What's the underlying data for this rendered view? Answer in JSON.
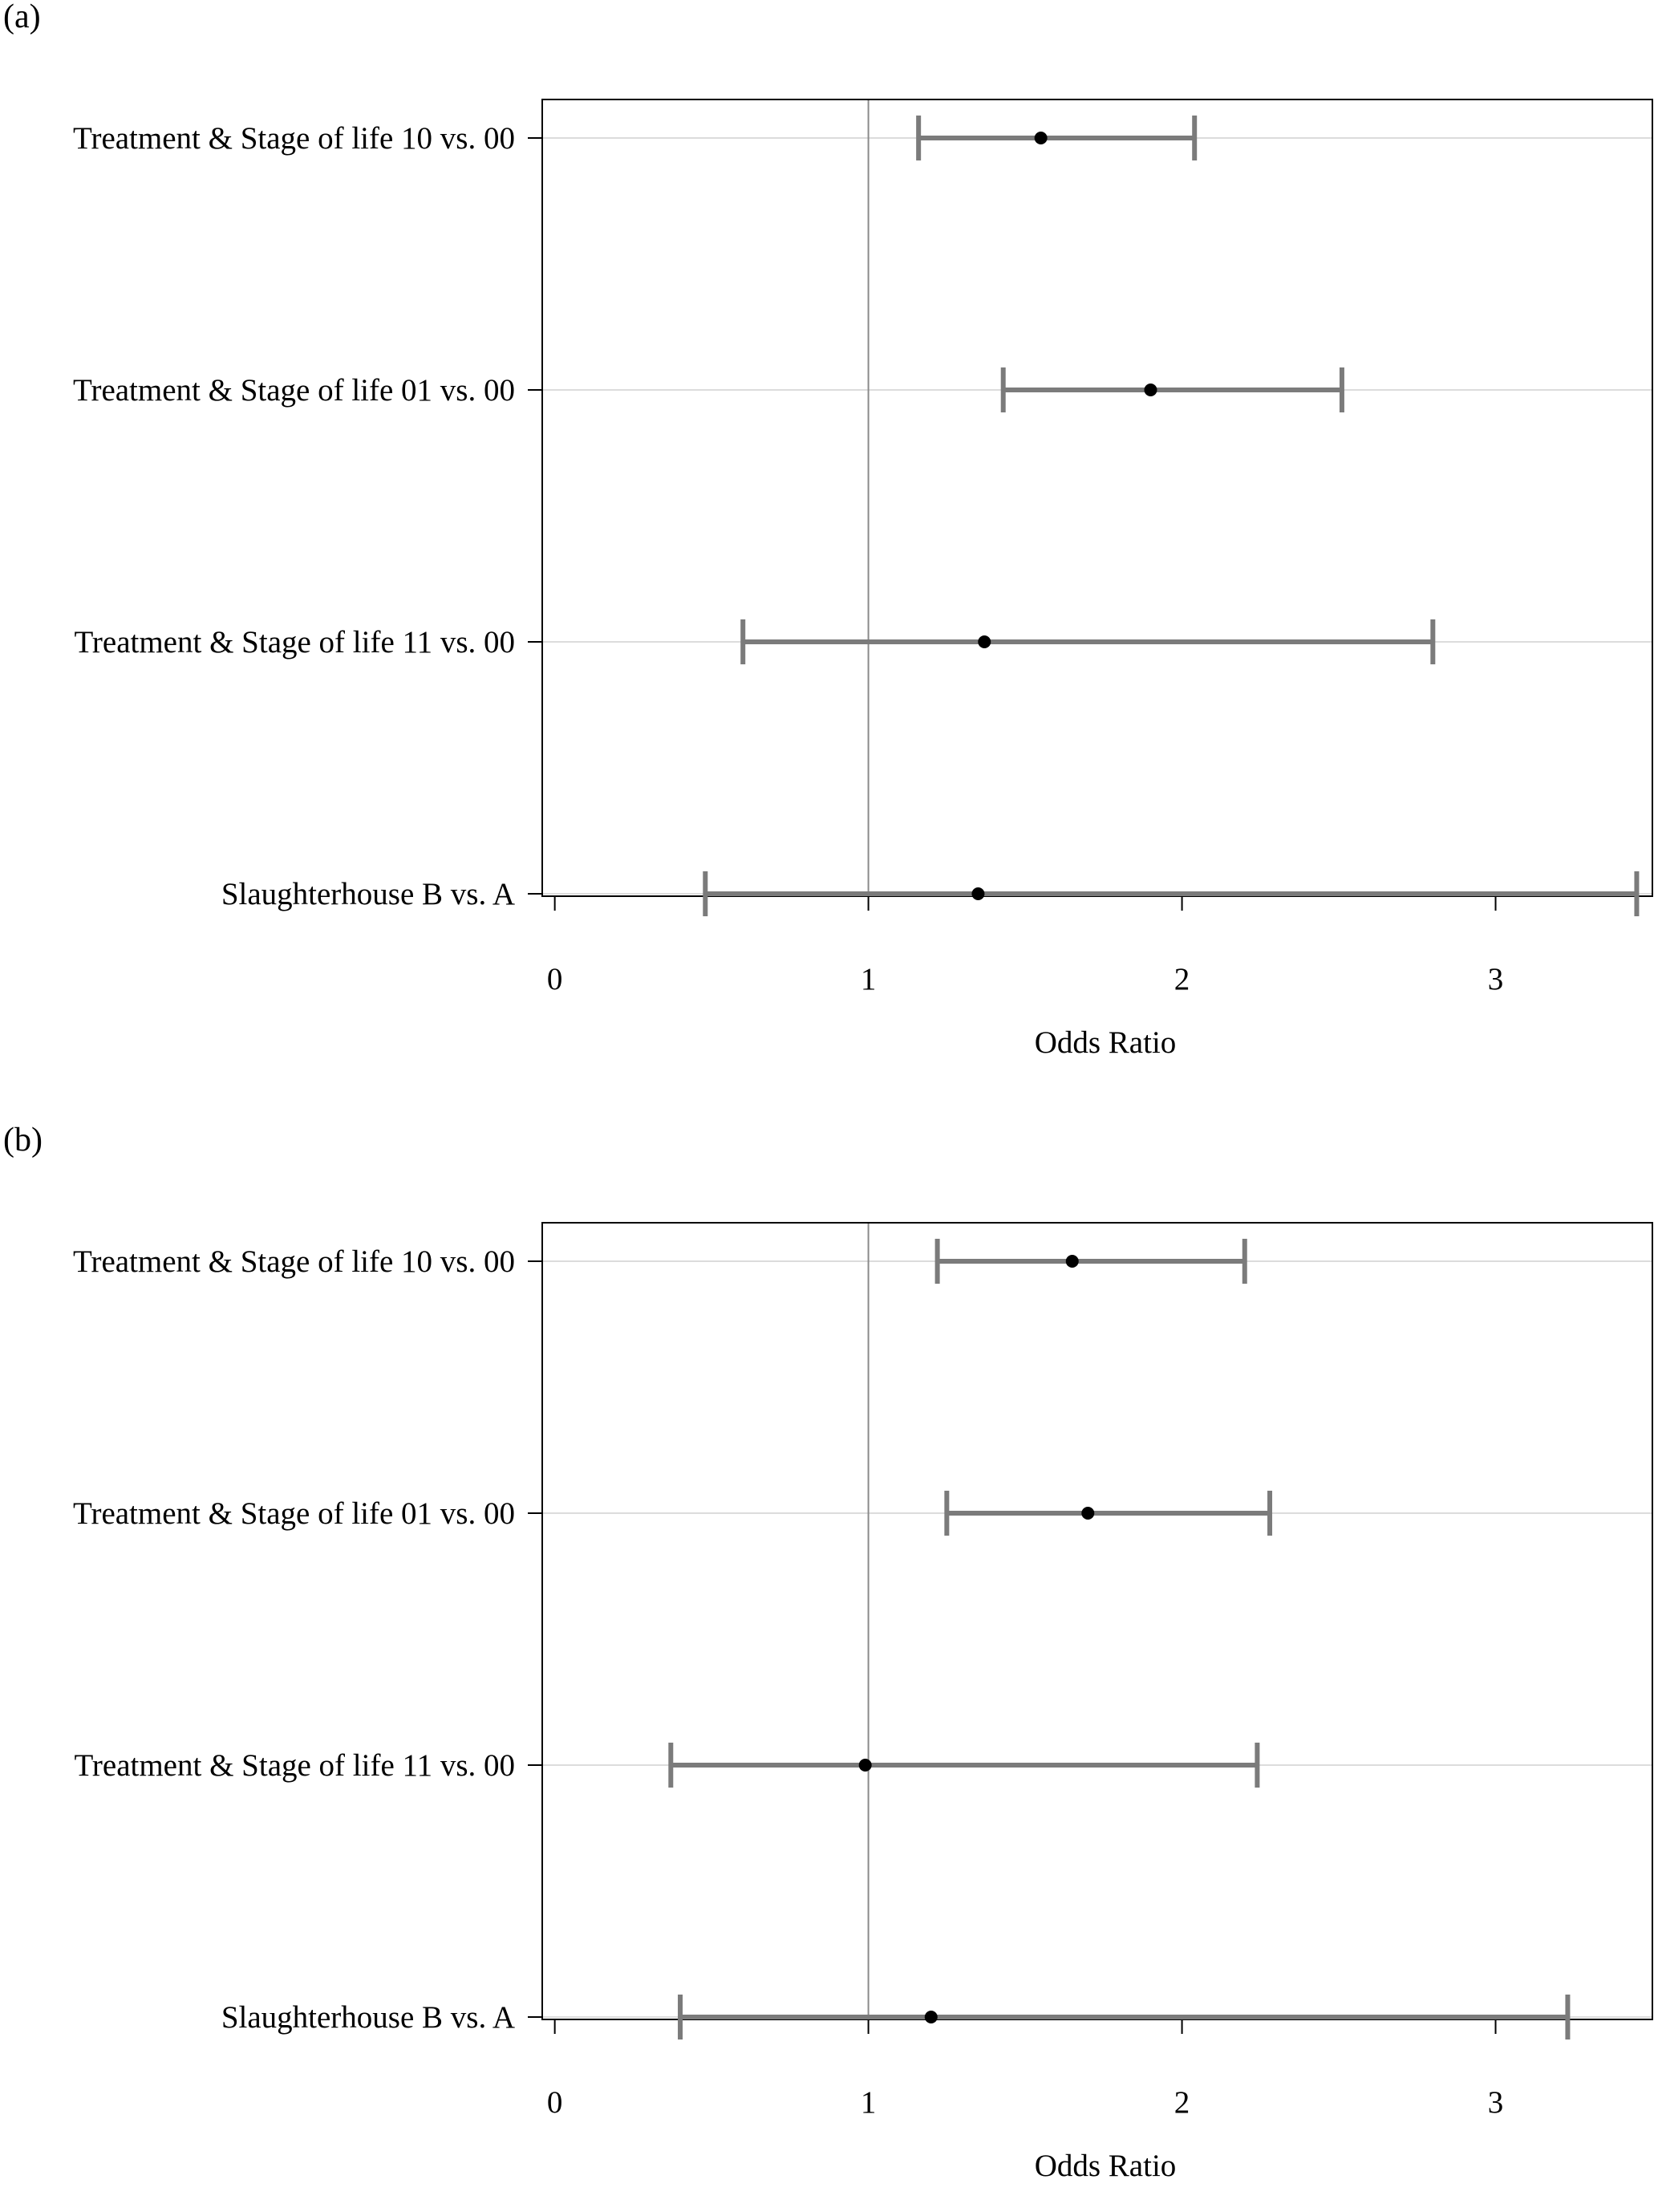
{
  "chart_data": [
    {
      "panel_label": "(a)",
      "type": "forest",
      "xlabel": "Odds  Ratio",
      "xlim": [
        -0.04,
        3.5
      ],
      "xticks": [
        0,
        1,
        2,
        3
      ],
      "xtick_labels": [
        "0",
        "1",
        "2",
        "3"
      ],
      "reference_line": 1,
      "grid": "horizontal",
      "categories": [
        "Treatment & Stage of life 10 vs. 00",
        "Treatment & Stage of life 01 vs. 00",
        "Treatment & Stage of life 11 vs. 00",
        "Slaughterhouse B vs. A"
      ],
      "estimates": [
        1.55,
        1.9,
        1.37,
        1.35
      ],
      "lower": [
        1.16,
        1.43,
        0.6,
        0.48
      ],
      "upper": [
        2.04,
        2.51,
        2.8,
        3.45
      ]
    },
    {
      "panel_label": "(b)",
      "type": "forest",
      "xlabel": "Odds  Ratio",
      "xlim": [
        -0.04,
        3.5
      ],
      "xticks": [
        0,
        1,
        2,
        3
      ],
      "xtick_labels": [
        "0",
        "1",
        "2",
        "3"
      ],
      "reference_line": 1,
      "grid": "horizontal",
      "categories": [
        "Treatment & Stage of life 10 vs. 00",
        "Treatment & Stage of life 01 vs. 00",
        "Treatment & Stage of life 11 vs. 00",
        "Slaughterhouse B vs. A"
      ],
      "estimates": [
        1.65,
        1.7,
        0.99,
        1.2
      ],
      "lower": [
        1.22,
        1.25,
        0.37,
        0.4
      ],
      "upper": [
        2.2,
        2.28,
        2.24,
        3.23
      ]
    }
  ]
}
